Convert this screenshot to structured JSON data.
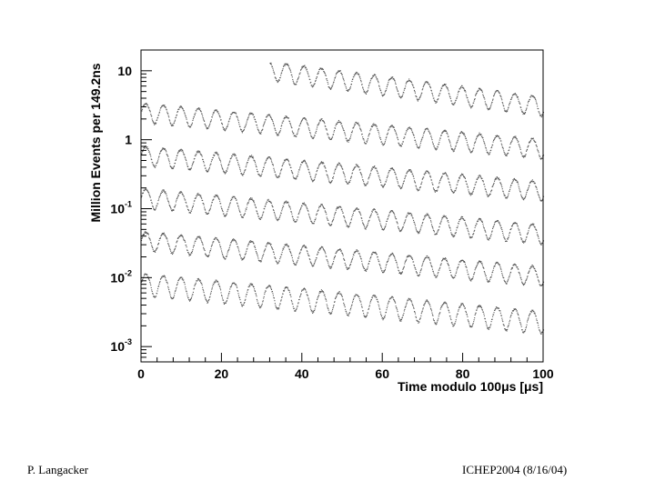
{
  "chart_data": {
    "type": "scatter",
    "title": "",
    "xlabel": "Time modulo 100μs [μs]",
    "ylabel": "Million Events per 149.2ns",
    "x_ticks": [
      "0",
      "20",
      "40",
      "60",
      "80",
      "100"
    ],
    "xlim": [
      0,
      100
    ],
    "y_scale": "log",
    "ylim": [
      0.0006,
      20
    ],
    "y_ticks": [
      {
        "base": "10",
        "exp": "-3",
        "value": 0.001
      },
      {
        "base": "10",
        "exp": "-2",
        "value": 0.01
      },
      {
        "base": "10",
        "exp": "-1",
        "value": 0.1
      },
      {
        "base": "1",
        "exp": "",
        "value": 1
      },
      {
        "base": "10",
        "exp": "",
        "value": 10
      }
    ],
    "grid": false,
    "legend": "none",
    "oscillation_period_us": 4.37,
    "series": [
      {
        "x_start": 32,
        "x_end": 100,
        "amplitude_ratio": 1.9,
        "values": [
          {
            "x": 32,
            "y": 10.5
          },
          {
            "x": 100,
            "y": 3.2
          }
        ]
      },
      {
        "x_start": 0,
        "x_end": 100,
        "amplitude_ratio": 1.9,
        "values": [
          {
            "x": 0,
            "y": 2.6
          },
          {
            "x": 100,
            "y": 0.78
          }
        ]
      },
      {
        "x_start": 0,
        "x_end": 100,
        "amplitude_ratio": 1.9,
        "values": [
          {
            "x": 0,
            "y": 0.62
          },
          {
            "x": 100,
            "y": 0.19
          }
        ]
      },
      {
        "x_start": 0,
        "x_end": 100,
        "amplitude_ratio": 1.9,
        "values": [
          {
            "x": 0,
            "y": 0.15
          },
          {
            "x": 100,
            "y": 0.045
          }
        ]
      },
      {
        "x_start": 0,
        "x_end": 100,
        "amplitude_ratio": 1.9,
        "values": [
          {
            "x": 0,
            "y": 0.036
          },
          {
            "x": 100,
            "y": 0.011
          }
        ]
      },
      {
        "x_start": 0,
        "x_end": 100,
        "amplitude_ratio": 2.1,
        "values": [
          {
            "x": 0,
            "y": 0.0085
          },
          {
            "x": 100,
            "y": 0.0024
          }
        ]
      }
    ],
    "series_color": "#555555",
    "axis_color": "#000000"
  },
  "footer": {
    "left": "P. Langacker",
    "right": "ICHEP2004 (8/16/04)"
  }
}
